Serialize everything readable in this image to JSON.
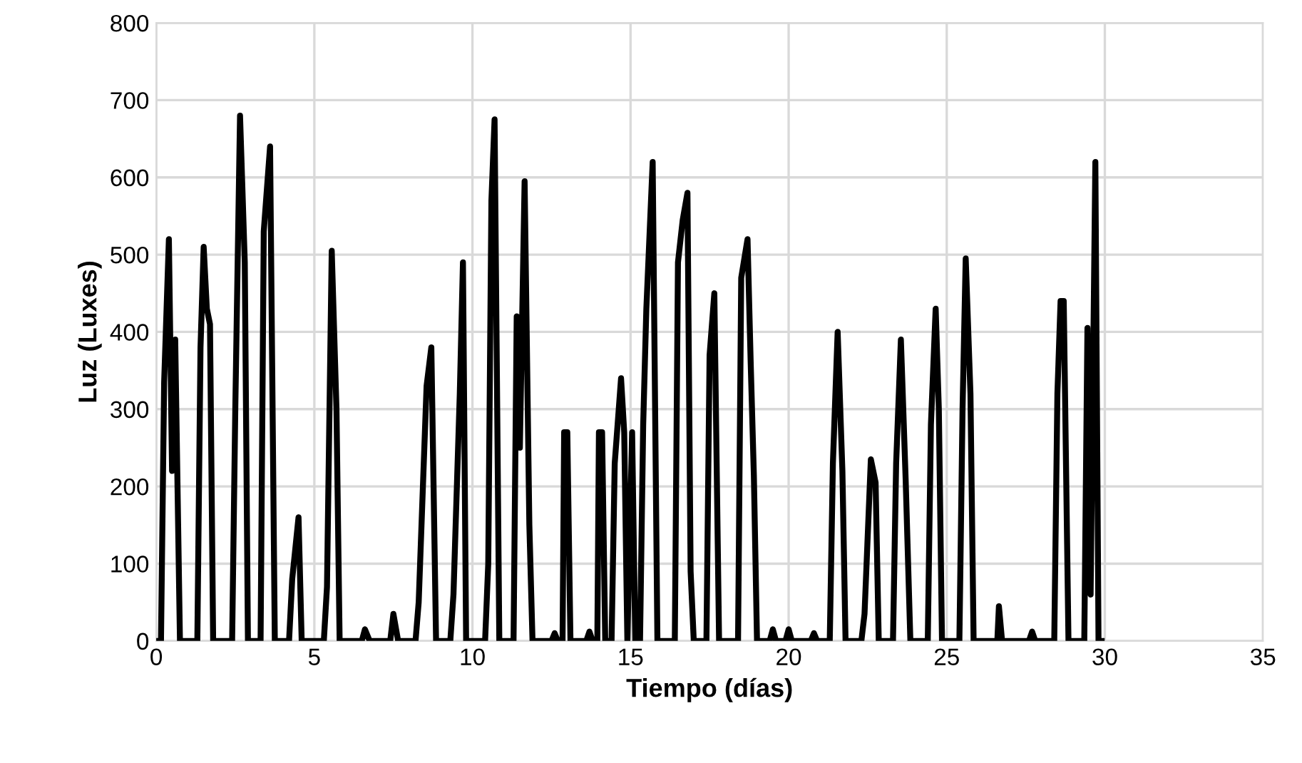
{
  "chart_data": {
    "type": "line",
    "xlabel": "Tiempo (días)",
    "ylabel": "Luz (Luxes)",
    "xlim": [
      0,
      35
    ],
    "xticks": [
      0,
      5,
      10,
      15,
      20,
      25,
      30,
      35
    ],
    "ylim": [
      0,
      800
    ],
    "yticks": [
      0,
      100,
      200,
      300,
      400,
      500,
      600,
      700,
      800
    ],
    "grid": true,
    "marker": "none",
    "line_style": "solid",
    "series": [
      {
        "color": "#000000",
        "x": [
          0,
          0.15,
          0.25,
          0.4,
          0.5,
          0.6,
          0.75,
          1.3,
          1.4,
          1.5,
          1.6,
          1.7,
          1.8,
          2.4,
          2.5,
          2.65,
          2.8,
          2.9,
          3.3,
          3.4,
          3.6,
          3.75,
          4.2,
          4.3,
          4.5,
          4.6,
          5.3,
          5.4,
          5.55,
          5.7,
          5.8,
          6.5,
          6.6,
          6.75,
          7.4,
          7.5,
          7.65,
          8.2,
          8.3,
          8.55,
          8.7,
          8.85,
          9.3,
          9.4,
          9.6,
          9.7,
          9.8,
          10.4,
          10.5,
          10.6,
          10.7,
          10.85,
          11.3,
          11.4,
          11.5,
          11.65,
          11.8,
          11.9,
          12.5,
          12.6,
          12.7,
          12.85,
          12.9,
          13.0,
          13.1,
          13.6,
          13.7,
          13.8,
          13.95,
          14.0,
          14.1,
          14.2,
          14.4,
          14.5,
          14.7,
          14.8,
          14.9,
          15.05,
          15.15,
          15.3,
          15.4,
          15.5,
          15.7,
          15.85,
          16.4,
          16.5,
          16.65,
          16.8,
          16.9,
          17.0,
          17.4,
          17.5,
          17.65,
          17.8,
          18.4,
          18.5,
          18.7,
          18.8,
          18.9,
          19.0,
          19.4,
          19.5,
          19.6,
          19.9,
          20.0,
          20.1,
          20.7,
          20.8,
          20.9,
          21.3,
          21.4,
          21.55,
          21.7,
          21.8,
          22.3,
          22.4,
          22.6,
          22.75,
          22.85,
          23.3,
          23.4,
          23.55,
          23.7,
          23.85,
          24.4,
          24.5,
          24.65,
          24.75,
          24.85,
          25.4,
          25.5,
          25.6,
          25.75,
          25.85,
          26.6,
          26.65,
          26.75,
          27.6,
          27.7,
          27.8,
          28.4,
          28.5,
          28.6,
          28.7,
          28.85,
          29.35,
          29.45,
          29.55,
          29.7,
          29.8,
          29.9
        ],
        "values": [
          0,
          0,
          335,
          520,
          220,
          390,
          0,
          0,
          380,
          510,
          430,
          410,
          0,
          0,
          300,
          680,
          490,
          0,
          0,
          530,
          640,
          0,
          0,
          80,
          160,
          0,
          0,
          70,
          505,
          300,
          0,
          0,
          15,
          0,
          0,
          35,
          0,
          0,
          50,
          330,
          380,
          0,
          0,
          60,
          320,
          490,
          0,
          0,
          100,
          570,
          675,
          0,
          0,
          420,
          250,
          595,
          150,
          0,
          0,
          10,
          0,
          0,
          270,
          270,
          0,
          0,
          12,
          0,
          0,
          270,
          270,
          0,
          0,
          230,
          340,
          270,
          0,
          270,
          0,
          0,
          280,
          430,
          620,
          0,
          0,
          490,
          545,
          580,
          90,
          0,
          0,
          370,
          450,
          0,
          0,
          470,
          520,
          360,
          215,
          0,
          0,
          15,
          0,
          0,
          15,
          0,
          0,
          10,
          0,
          0,
          230,
          400,
          220,
          0,
          0,
          35,
          235,
          205,
          0,
          0,
          230,
          390,
          210,
          0,
          0,
          280,
          430,
          300,
          0,
          0,
          300,
          495,
          320,
          0,
          0,
          45,
          0,
          0,
          12,
          0,
          0,
          320,
          440,
          440,
          0,
          0,
          405,
          60,
          620,
          0,
          0
        ]
      }
    ]
  }
}
